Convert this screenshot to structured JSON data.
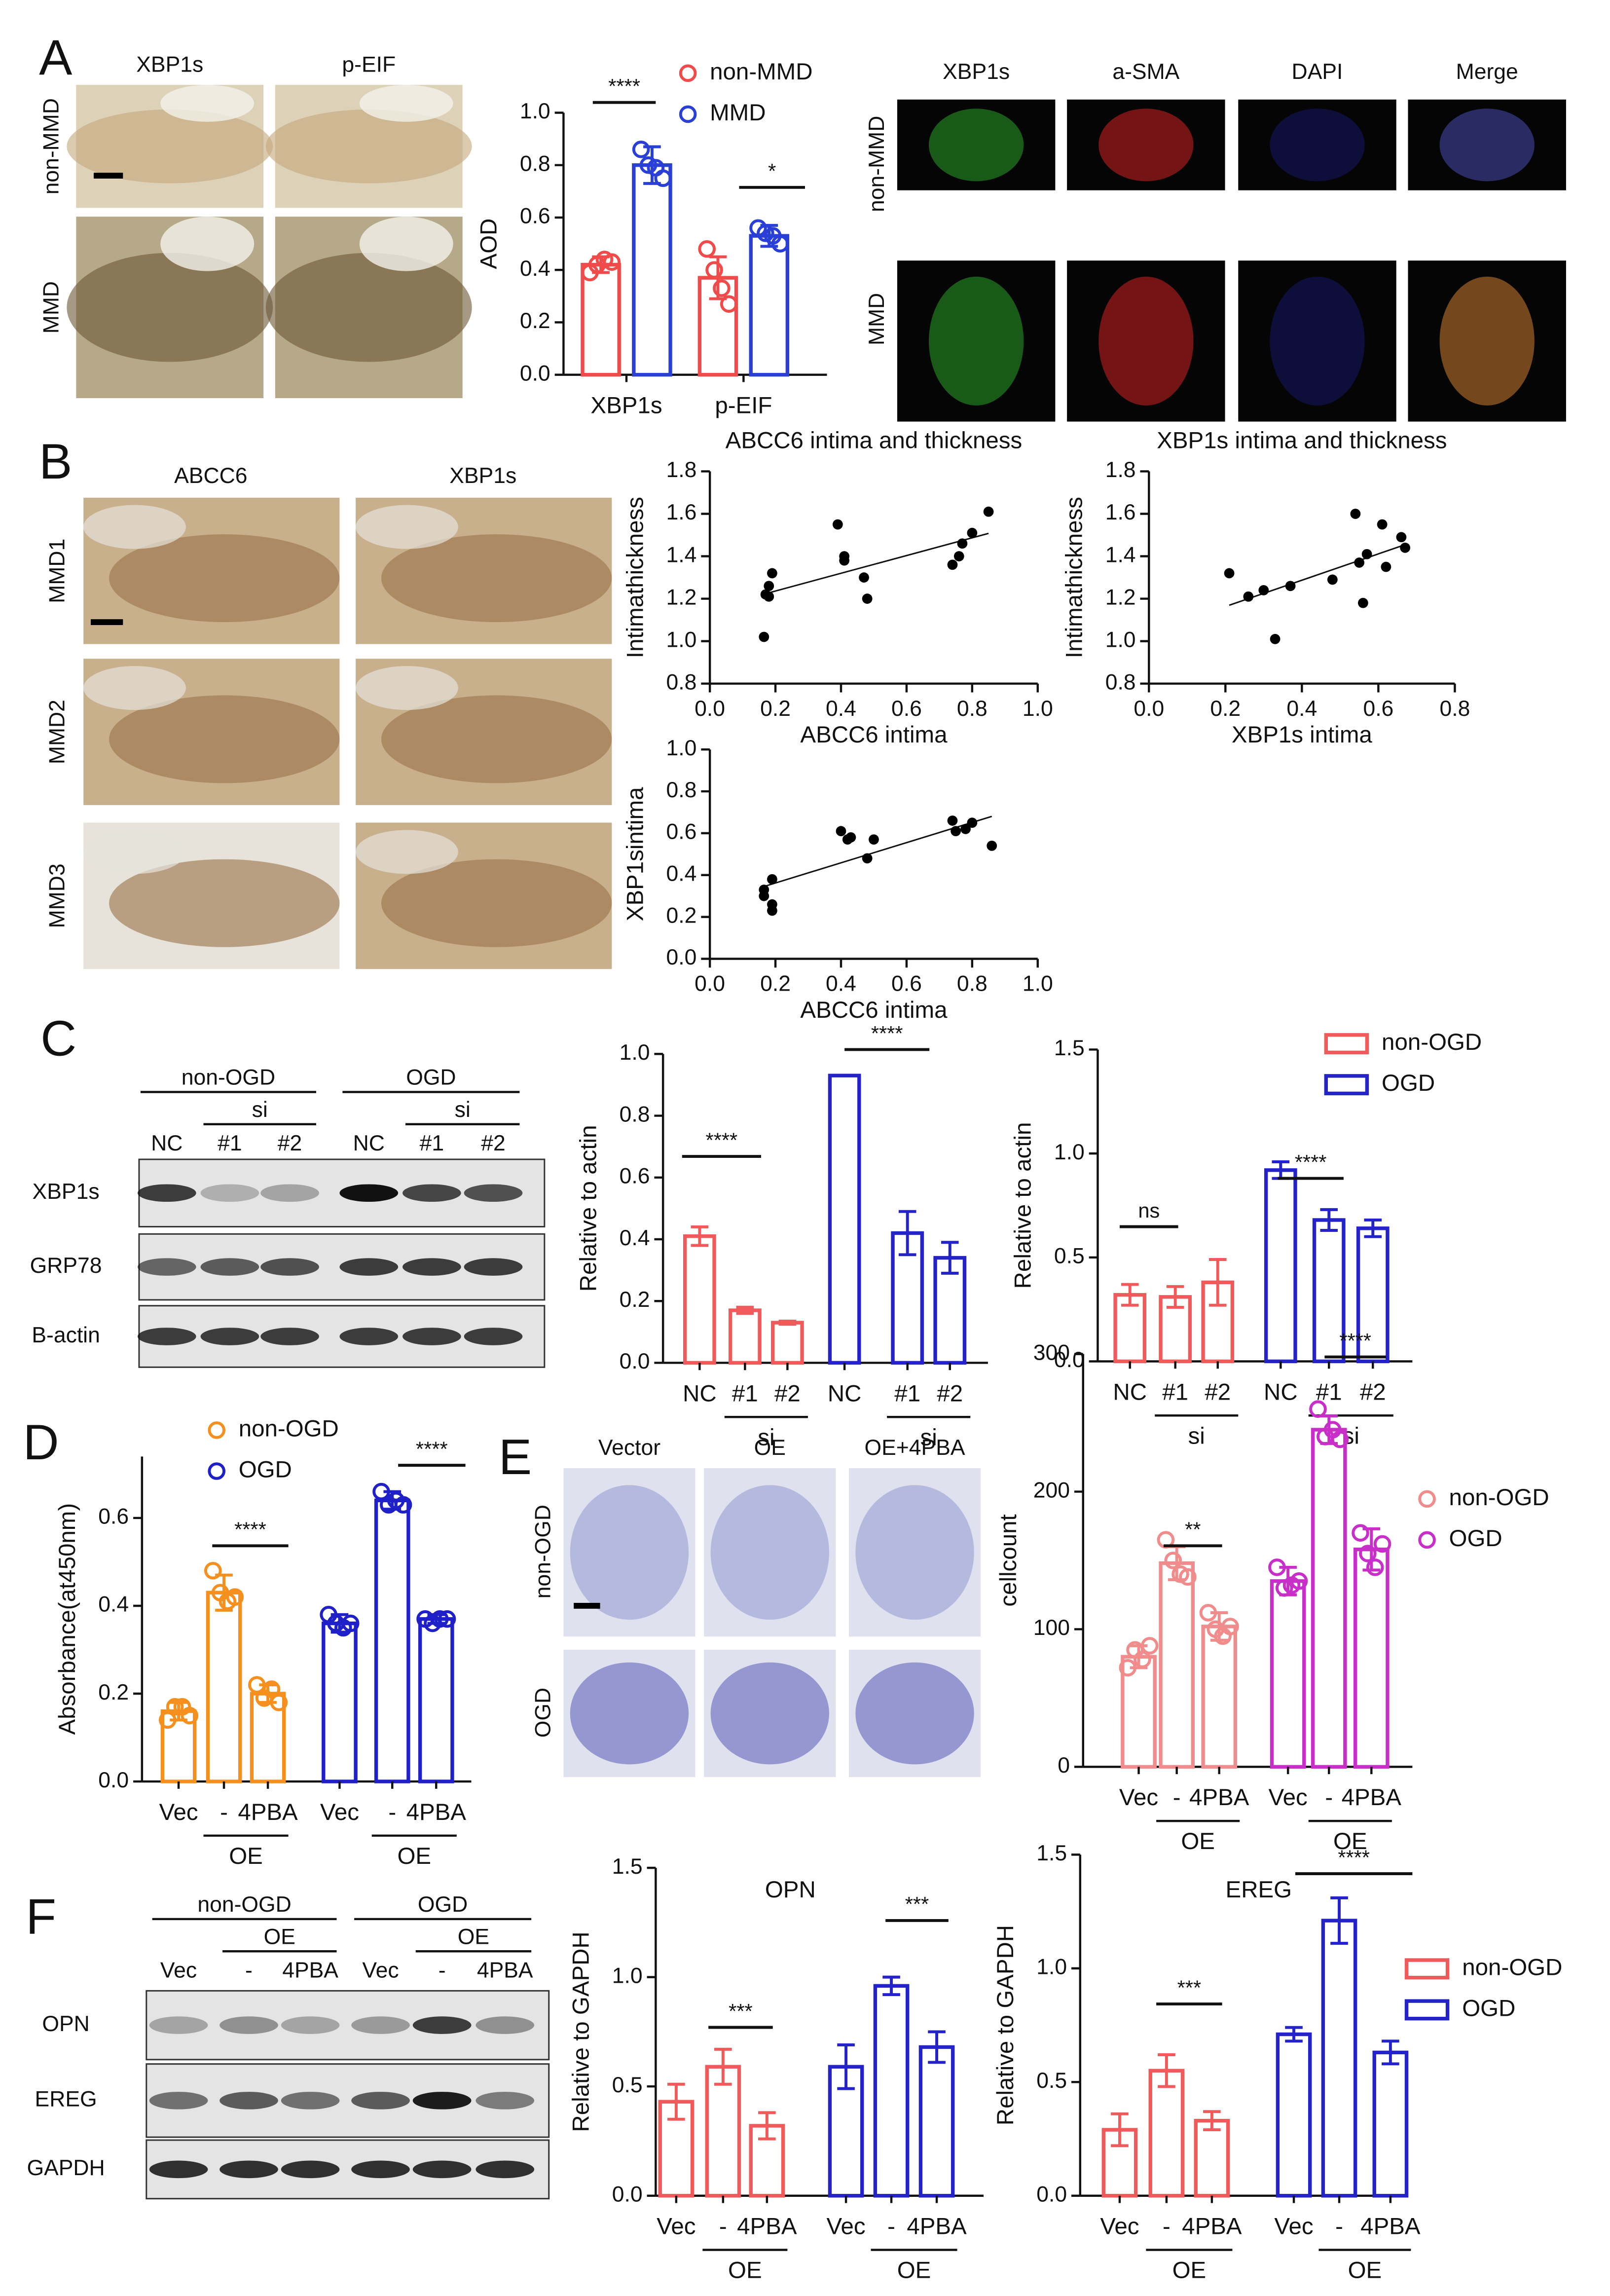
{
  "figure": {
    "panel_labels": [
      "A",
      "B",
      "C",
      "D",
      "E",
      "F"
    ],
    "A": {
      "ihc_columns": [
        "XBP1s",
        "p-EIF"
      ],
      "ihc_rows": [
        "non-MMD",
        "MMD"
      ],
      "if_columns": [
        "XBP1s",
        "a-SMA",
        "DAPI",
        "Merge"
      ],
      "if_rows": [
        "non-MMD",
        "MMD"
      ]
    },
    "B": {
      "columns": [
        "ABCC6",
        "XBP1s"
      ],
      "rows": [
        "MMD1",
        "MMD2",
        "MMD3"
      ]
    },
    "C": {
      "groups": [
        "non-OGD",
        "OGD"
      ],
      "sub": [
        "si",
        "si"
      ],
      "lanes": [
        "NC",
        "#1",
        "#2",
        "NC",
        "#1",
        "#2"
      ],
      "rows": [
        "XBP1s",
        "GRP78",
        "B-actin"
      ]
    },
    "E": {
      "columns": [
        "Vector",
        "OE",
        "OE+4PBA"
      ],
      "rows": [
        "non-OGD",
        "OGD"
      ]
    },
    "F": {
      "groups": [
        "non-OGD",
        "OGD"
      ],
      "sub": [
        "OE",
        "OE"
      ],
      "lanes": [
        "Vec",
        "-",
        "4PBA",
        "Vec",
        "-",
        "4PBA"
      ],
      "rows": [
        "OPN",
        "EREG",
        "GAPDH"
      ]
    }
  },
  "chart_data": [
    {
      "type": "bar",
      "ylabel": "AOD",
      "categories": [
        "XBP1s",
        "p-EIF"
      ],
      "series": [
        {
          "name": "non-MMD",
          "color": "#f04a4a",
          "values": [
            0.42,
            0.37
          ],
          "errors": [
            0.03,
            0.08
          ],
          "points": [
            [
              0.39,
              0.42,
              0.44,
              0.43
            ],
            [
              0.48,
              0.4,
              0.33,
              0.27
            ]
          ]
        },
        {
          "name": "MMD",
          "color": "#2a3fd6",
          "values": [
            0.8,
            0.53
          ],
          "errors": [
            0.07,
            0.04
          ],
          "points": [
            [
              0.86,
              0.8,
              0.79,
              0.75
            ],
            [
              0.56,
              0.54,
              0.53,
              0.5
            ]
          ]
        }
      ],
      "ylim": [
        0,
        1.0
      ],
      "yticks": [
        {
          "value": 0,
          "label": "0.0"
        },
        0.2,
        0.4,
        0.6,
        0.8,
        {
          "value": 1.0,
          "label": "1.0"
        }
      ],
      "legend": "upper right",
      "significance": [
        "****",
        "*"
      ]
    },
    {
      "type": "scatter",
      "title": "ABCC6 intima and thickness",
      "xlabel": "ABCC6 intima",
      "ylabel": "Intimathickness",
      "color": "#000000",
      "x": [
        0.165,
        0.17,
        0.18,
        0.19,
        0.18,
        0.39,
        0.41,
        0.41,
        0.48,
        0.47,
        0.74,
        0.76,
        0.77,
        0.8,
        0.85
      ],
      "y": [
        1.02,
        1.22,
        1.26,
        1.32,
        1.21,
        1.55,
        1.38,
        1.4,
        1.2,
        1.3,
        1.36,
        1.4,
        1.46,
        1.51,
        1.61
      ],
      "xlim": [
        0,
        1.0
      ],
      "xticks": [
        {
          "value": 0,
          "label": "0.0"
        },
        0.2,
        0.4,
        0.6,
        0.8,
        {
          "value": 1.0,
          "label": "1.0"
        }
      ],
      "ylim": [
        0.8,
        1.8
      ],
      "yticks": [
        0.8,
        {
          "value": 1.0,
          "label": "1.0"
        },
        1.2,
        1.4,
        1.6,
        1.8
      ]
    },
    {
      "type": "scatter",
      "title": "XBP1s intima and thickness",
      "xlabel": "XBP1s intima",
      "ylabel": "Intimathickness",
      "color": "#000000",
      "x": [
        0.21,
        0.26,
        0.3,
        0.33,
        0.37,
        0.48,
        0.54,
        0.55,
        0.56,
        0.57,
        0.61,
        0.62,
        0.66,
        0.67
      ],
      "y": [
        1.32,
        1.21,
        1.24,
        1.01,
        1.26,
        1.29,
        1.6,
        1.37,
        1.18,
        1.41,
        1.55,
        1.35,
        1.49,
        1.44
      ],
      "xlim": [
        0,
        0.8
      ],
      "xticks": [
        {
          "value": 0,
          "label": "0.0"
        },
        0.2,
        0.4,
        0.6,
        0.8
      ],
      "ylim": [
        0.8,
        1.8
      ],
      "yticks": [
        0.8,
        {
          "value": 1.0,
          "label": "1.0"
        },
        1.2,
        1.4,
        1.6,
        1.8
      ]
    },
    {
      "type": "scatter",
      "xlabel": "ABCC6 intima",
      "ylabel": "XBP1sintima",
      "color": "#000000",
      "x": [
        0.19,
        0.165,
        0.165,
        0.19,
        0.19,
        0.4,
        0.42,
        0.43,
        0.5,
        0.48,
        0.74,
        0.75,
        0.78,
        0.8,
        0.86
      ],
      "y": [
        0.38,
        0.33,
        0.3,
        0.26,
        0.23,
        0.61,
        0.57,
        0.58,
        0.57,
        0.48,
        0.66,
        0.61,
        0.62,
        0.65,
        0.54
      ],
      "xlim": [
        0,
        1.0
      ],
      "xticks": [
        {
          "value": 0,
          "label": "0.0"
        },
        0.2,
        0.4,
        0.6,
        0.8,
        {
          "value": 1.0,
          "label": "1.0"
        }
      ],
      "ylim": [
        0,
        1.0
      ],
      "yticks": [
        {
          "value": 0,
          "label": "0.0"
        },
        0.2,
        0.4,
        0.6,
        0.8,
        {
          "value": 1.0,
          "label": "1.0"
        }
      ]
    },
    {
      "type": "bar",
      "ylabel": "Relative to actin",
      "categories": [
        "NC",
        "#1",
        "#2",
        "NC",
        "#1",
        "#2"
      ],
      "subgroup_labels": [
        "si",
        "si"
      ],
      "series": [
        {
          "color": "#f05a5a",
          "values": [
            0.41,
            0.17,
            0.13,
            null,
            null,
            null
          ],
          "errors": [
            0.03,
            0.01,
            0.005,
            null,
            null,
            null
          ]
        },
        {
          "color": "#2323c8",
          "values": [
            null,
            null,
            null,
            0.93,
            0.42,
            0.34
          ],
          "errors": [
            null,
            null,
            null,
            0,
            0.07,
            0.05
          ]
        }
      ],
      "ylim": [
        0,
        1.0
      ],
      "yticks": [
        {
          "value": 0,
          "label": "0.0"
        },
        0.2,
        0.4,
        0.6,
        0.8,
        {
          "value": 1.0,
          "label": "1.0"
        }
      ],
      "significance": [
        "****",
        "****"
      ]
    },
    {
      "type": "bar",
      "ylabel": "Relative to actin",
      "categories": [
        "NC",
        "#1",
        "#2",
        "NC",
        "#1",
        "#2"
      ],
      "subgroup_labels": [
        "si",
        "si"
      ],
      "series": [
        {
          "name": "non-OGD",
          "color": "#f05a5a",
          "values": [
            0.32,
            0.31,
            0.38,
            null,
            null,
            null
          ],
          "errors": [
            0.05,
            0.05,
            0.11,
            null,
            null,
            null
          ]
        },
        {
          "name": "OGD",
          "color": "#2323c8",
          "values": [
            null,
            null,
            null,
            0.92,
            0.68,
            0.64
          ],
          "errors": [
            null,
            null,
            null,
            0.04,
            0.05,
            0.04
          ]
        }
      ],
      "ylim": [
        0,
        1.5
      ],
      "yticks": [
        {
          "value": 0,
          "label": "0.0"
        },
        0.5,
        {
          "value": 1.0,
          "label": "1.0"
        },
        1.5
      ],
      "legend": "upper right",
      "significance": [
        "ns",
        "****"
      ]
    },
    {
      "type": "bar",
      "ylabel": "Absorbance(at450nm)",
      "categories": [
        "Vec",
        "-",
        "4PBA",
        "Vec",
        "-",
        "4PBA"
      ],
      "subgroup_labels": [
        "OE",
        "OE"
      ],
      "series": [
        {
          "name": "non-OGD",
          "color": "#f5901e",
          "values": [
            0.16,
            0.43,
            0.2,
            null,
            null,
            null
          ],
          "errors": [
            0.02,
            0.04,
            0.02,
            null,
            null,
            null
          ],
          "points": [
            [
              0.14,
              0.17,
              0.17,
              0.15
            ],
            [
              0.48,
              0.43,
              0.41,
              0.42
            ],
            [
              0.22,
              0.19,
              0.21,
              0.18
            ],
            null,
            null,
            null
          ]
        },
        {
          "name": "OGD",
          "color": "#2020c8",
          "values": [
            null,
            null,
            null,
            0.36,
            0.64,
            0.37
          ],
          "errors": [
            null,
            null,
            null,
            0.02,
            0.02,
            0.01
          ],
          "points": [
            null,
            null,
            null,
            [
              0.38,
              0.36,
              0.35,
              0.36
            ],
            [
              0.66,
              0.63,
              0.64,
              0.63
            ],
            [
              0.37,
              0.36,
              0.37,
              0.37
            ]
          ]
        }
      ],
      "ylim": [
        0,
        0.74
      ],
      "yticks": [
        {
          "value": 0,
          "label": "0.0"
        },
        0.2,
        0.4,
        0.6
      ],
      "legend": "upper left",
      "significance": [
        "****",
        "****"
      ]
    },
    {
      "type": "bar",
      "ylabel": "cellcount",
      "categories": [
        "Vec",
        "-",
        "4PBA",
        "Vec",
        "-",
        "4PBA"
      ],
      "subgroup_labels": [
        "OE",
        "OE"
      ],
      "series": [
        {
          "name": "non-OGD",
          "color": "#f08c8c",
          "values": [
            80,
            148,
            102,
            null,
            null,
            null
          ],
          "errors": [
            8,
            12,
            10,
            null,
            null,
            null
          ],
          "points": [
            [
              72,
              85,
              78,
              88
            ],
            [
              165,
              150,
              140,
              138
            ],
            [
              112,
              100,
              95,
              102
            ],
            null,
            null,
            null
          ]
        },
        {
          "name": "OGD",
          "color": "#c82fc8",
          "values": [
            null,
            null,
            null,
            135,
            245,
            158
          ],
          "errors": [
            null,
            null,
            null,
            10,
            10,
            15
          ],
          "points": [
            null,
            null,
            null,
            [
              145,
              130,
              132,
              135
            ],
            [
              260,
              240,
              245,
              238
            ],
            [
              170,
              155,
              145,
              162
            ]
          ]
        }
      ],
      "ylim": [
        0,
        300
      ],
      "yticks": [
        0,
        100,
        200,
        300
      ],
      "legend": "upper right",
      "significance": [
        "**",
        "****"
      ]
    },
    {
      "type": "bar",
      "title": "OPN",
      "ylabel": "Relative to GAPDH",
      "categories": [
        "Vec",
        "-",
        "4PBA",
        "Vec",
        "-",
        "4PBA"
      ],
      "subgroup_labels": [
        "OE",
        "OE"
      ],
      "series": [
        {
          "color": "#f05a5a",
          "values": [
            0.43,
            0.59,
            0.32,
            null,
            null,
            null
          ],
          "errors": [
            0.08,
            0.08,
            0.06,
            null,
            null,
            null
          ]
        },
        {
          "color": "#2323c8",
          "values": [
            null,
            null,
            null,
            0.59,
            0.96,
            0.68
          ],
          "errors": [
            null,
            null,
            null,
            0.1,
            0.04,
            0.07
          ]
        }
      ],
      "ylim": [
        0,
        1.5
      ],
      "yticks": [
        {
          "value": 0,
          "label": "0.0"
        },
        0.5,
        {
          "value": 1.0,
          "label": "1.0"
        },
        1.5
      ],
      "significance": [
        "***",
        "***"
      ]
    },
    {
      "type": "bar",
      "title": "EREG",
      "ylabel": "Relative to GAPDH",
      "categories": [
        "Vec",
        "-",
        "4PBA",
        "Vec",
        "-",
        "4PBA"
      ],
      "subgroup_labels": [
        "OE",
        "OE"
      ],
      "series": [
        {
          "name": "non-OGD",
          "color": "#f05a5a",
          "values": [
            0.29,
            0.55,
            0.33,
            null,
            null,
            null
          ],
          "errors": [
            0.07,
            0.07,
            0.04,
            null,
            null,
            null
          ]
        },
        {
          "name": "OGD",
          "color": "#2323c8",
          "values": [
            null,
            null,
            null,
            0.71,
            1.21,
            0.63
          ],
          "errors": [
            null,
            null,
            null,
            0.03,
            0.1,
            0.05
          ]
        }
      ],
      "ylim": [
        0,
        1.5
      ],
      "yticks": [
        {
          "value": 0,
          "label": "0.0"
        },
        0.5,
        {
          "value": 1.0,
          "label": "1.0"
        },
        1.5
      ],
      "legend": "right",
      "significance": [
        "***",
        "****"
      ]
    }
  ]
}
